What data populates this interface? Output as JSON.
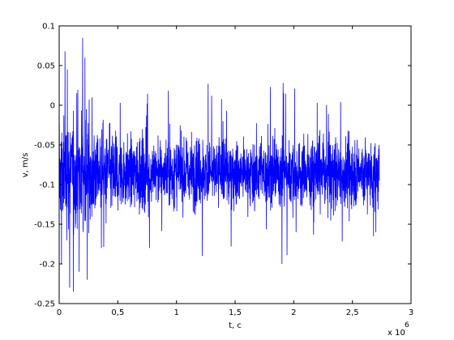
{
  "chart_data": {
    "type": "line",
    "title": "",
    "xlabel": "t, c",
    "ylabel": "v, m/s",
    "x_exponent_label": "x 10",
    "x_exponent_power": "6",
    "xlim": [
      0,
      3
    ],
    "ylim": [
      -0.25,
      0.1
    ],
    "x_ticks": [
      0,
      0.5,
      1,
      1.5,
      2,
      2.5,
      3
    ],
    "x_tick_labels": [
      "0",
      "0,5",
      "1",
      "1,5",
      "2",
      "2,5",
      "3"
    ],
    "y_ticks": [
      -0.25,
      -0.2,
      -0.15,
      -0.1,
      -0.05,
      0,
      0.05,
      0.1
    ],
    "y_tick_labels": [
      "-0.25",
      "-0.2",
      "-0.15",
      "-0.1",
      "-0.05",
      "0",
      "0.05",
      "0.1"
    ],
    "grid": false,
    "legend": "none",
    "series": [
      {
        "color": "#0000ff",
        "x_range": [
          0,
          2.73
        ],
        "mean": -0.085,
        "std_dev": 0.03,
        "samples": 2200,
        "peaks": [
          {
            "x": 0.02,
            "y": -0.2
          },
          {
            "x": 0.05,
            "y": 0.068
          },
          {
            "x": 0.07,
            "y": 0.045
          },
          {
            "x": 0.09,
            "y": -0.23
          },
          {
            "x": 0.12,
            "y": -0.235
          },
          {
            "x": 0.15,
            "y": 0.015
          },
          {
            "x": 0.17,
            "y": -0.21
          },
          {
            "x": 0.2,
            "y": 0.085
          },
          {
            "x": 0.22,
            "y": 0.06
          },
          {
            "x": 0.24,
            "y": -0.22
          },
          {
            "x": 0.28,
            "y": 0.01
          },
          {
            "x": 0.36,
            "y": -0.18
          },
          {
            "x": 0.52,
            "y": 0.003
          },
          {
            "x": 0.75,
            "y": 0.002
          },
          {
            "x": 0.77,
            "y": -0.18
          },
          {
            "x": 1.22,
            "y": -0.19
          },
          {
            "x": 1.27,
            "y": 0.027
          },
          {
            "x": 1.3,
            "y": 0.012
          },
          {
            "x": 1.8,
            "y": 0.023
          },
          {
            "x": 1.91,
            "y": 0.028
          },
          {
            "x": 1.9,
            "y": -0.2
          },
          {
            "x": 2.02,
            "y": -0.16
          },
          {
            "x": 2.2,
            "y": 0.003
          },
          {
            "x": 2.4,
            "y": 0.004
          },
          {
            "x": 2.68,
            "y": -0.165
          },
          {
            "x": 2.7,
            "y": -0.16
          }
        ]
      }
    ]
  }
}
